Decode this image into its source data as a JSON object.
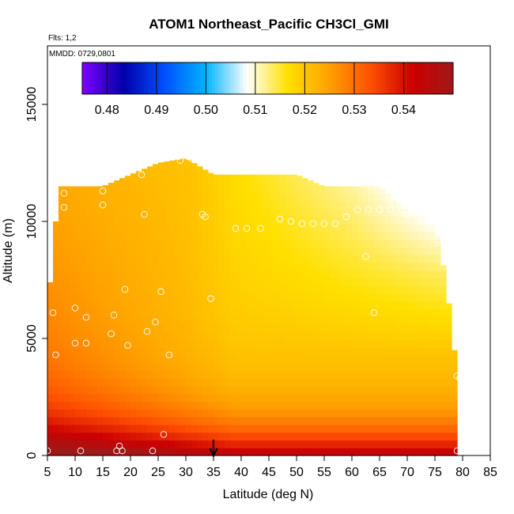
{
  "chart_data": {
    "type": "heatmap",
    "title": "ATOM1 Northeast_Pacific CH3Cl_GMI",
    "flights_note": "Flts: 1,2",
    "date_note": "MMDD: 0729,0801",
    "xlabel": "Latitude (deg N)",
    "ylabel": "Altitude (m)",
    "xlim": [
      5,
      85
    ],
    "ylim": [
      0,
      17500
    ],
    "x_ticks": [
      "5",
      "10",
      "15",
      "20",
      "25",
      "30",
      "35",
      "40",
      "45",
      "50",
      "55",
      "60",
      "65",
      "70",
      "75",
      "80",
      "85"
    ],
    "y_ticks": [
      "0",
      "5000",
      "10000",
      "15000"
    ],
    "colorbar": {
      "min": 0.475,
      "max": 0.55,
      "ticks": [
        "0.48",
        "0.49",
        "0.50",
        "0.51",
        "0.52",
        "0.53",
        "0.54"
      ],
      "colors": [
        "#7f00ff",
        "#0000aa",
        "#0050ff",
        "#00b4ff",
        "#ffffff",
        "#ffe000",
        "#ffa000",
        "#ff5000",
        "#cc0000",
        "#a01818"
      ]
    },
    "grid": false,
    "profile_outline": [
      {
        "lat": 5,
        "top": 6300
      },
      {
        "lat": 6,
        "top": 8500
      },
      {
        "lat": 7,
        "top": 11500
      },
      {
        "lat": 10,
        "top": 11500
      },
      {
        "lat": 15,
        "top": 11500
      },
      {
        "lat": 20,
        "top": 12000
      },
      {
        "lat": 25,
        "top": 12500
      },
      {
        "lat": 30,
        "top": 12700
      },
      {
        "lat": 35,
        "top": 12000
      },
      {
        "lat": 40,
        "top": 12000
      },
      {
        "lat": 45,
        "top": 12000
      },
      {
        "lat": 50,
        "top": 12000
      },
      {
        "lat": 55,
        "top": 11500
      },
      {
        "lat": 60,
        "top": 11500
      },
      {
        "lat": 65,
        "top": 11500
      },
      {
        "lat": 70,
        "top": 10500
      },
      {
        "lat": 75,
        "top": 10000
      },
      {
        "lat": 77,
        "top": 7500
      },
      {
        "lat": 79,
        "top": 3500
      }
    ],
    "observations": [
      {
        "lat": 5,
        "alt": 200
      },
      {
        "lat": 6,
        "alt": 6100
      },
      {
        "lat": 6.5,
        "alt": 4300
      },
      {
        "lat": 8,
        "alt": 11200
      },
      {
        "lat": 8,
        "alt": 10600
      },
      {
        "lat": 10,
        "alt": 6300
      },
      {
        "lat": 10,
        "alt": 4800
      },
      {
        "lat": 11,
        "alt": 200
      },
      {
        "lat": 12,
        "alt": 5900
      },
      {
        "lat": 12,
        "alt": 4800
      },
      {
        "lat": 15,
        "alt": 11300
      },
      {
        "lat": 15,
        "alt": 10700
      },
      {
        "lat": 16.5,
        "alt": 5200
      },
      {
        "lat": 17,
        "alt": 6000
      },
      {
        "lat": 17.5,
        "alt": 200
      },
      {
        "lat": 18,
        "alt": 400
      },
      {
        "lat": 18.5,
        "alt": 200
      },
      {
        "lat": 19,
        "alt": 7100
      },
      {
        "lat": 19.5,
        "alt": 4700
      },
      {
        "lat": 22,
        "alt": 12000
      },
      {
        "lat": 22.5,
        "alt": 10300
      },
      {
        "lat": 23,
        "alt": 5300
      },
      {
        "lat": 24,
        "alt": 200
      },
      {
        "lat": 24.5,
        "alt": 5700
      },
      {
        "lat": 25.5,
        "alt": 7000
      },
      {
        "lat": 26,
        "alt": 900
      },
      {
        "lat": 27,
        "alt": 4300
      },
      {
        "lat": 29,
        "alt": 12600
      },
      {
        "lat": 31,
        "alt": 12700
      },
      {
        "lat": 33,
        "alt": 10300
      },
      {
        "lat": 33.5,
        "alt": 10200
      },
      {
        "lat": 34.5,
        "alt": 6700
      },
      {
        "lat": 39,
        "alt": 9700
      },
      {
        "lat": 41,
        "alt": 9700
      },
      {
        "lat": 43.5,
        "alt": 9700
      },
      {
        "lat": 47,
        "alt": 10100
      },
      {
        "lat": 49,
        "alt": 10000
      },
      {
        "lat": 51,
        "alt": 9900
      },
      {
        "lat": 53,
        "alt": 9900
      },
      {
        "lat": 55,
        "alt": 9900
      },
      {
        "lat": 57,
        "alt": 9900
      },
      {
        "lat": 59,
        "alt": 10200
      },
      {
        "lat": 61,
        "alt": 10500
      },
      {
        "lat": 62.5,
        "alt": 8500
      },
      {
        "lat": 63,
        "alt": 10500
      },
      {
        "lat": 64,
        "alt": 6100
      },
      {
        "lat": 65,
        "alt": 10500
      },
      {
        "lat": 67,
        "alt": 10500
      },
      {
        "lat": 67.5,
        "alt": 11300
      },
      {
        "lat": 69,
        "alt": 10500
      },
      {
        "lat": 70,
        "alt": 10300
      },
      {
        "lat": 73.5,
        "alt": 9900
      },
      {
        "lat": 75.5,
        "alt": 9700
      },
      {
        "lat": 75.5,
        "alt": 9200
      },
      {
        "lat": 79,
        "alt": 3400
      },
      {
        "lat": 79,
        "alt": 200
      },
      {
        "lat": 79.5,
        "alt": 3300
      }
    ],
    "marker_arrow_lat": 35
  }
}
